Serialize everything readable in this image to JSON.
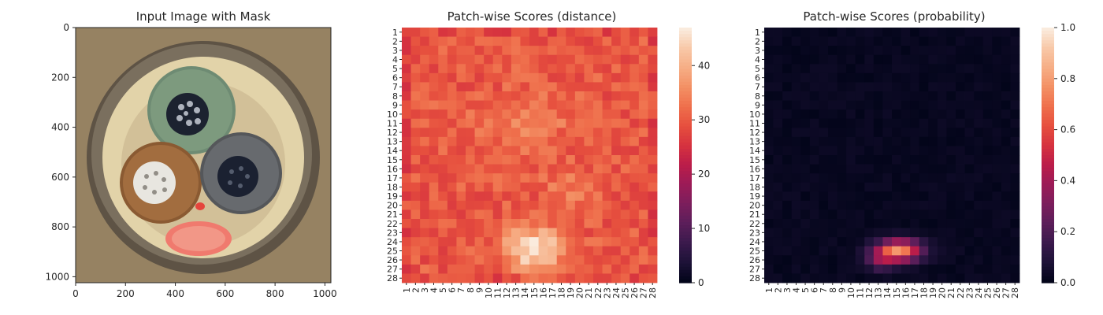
{
  "chart_data": [
    {
      "type": "image",
      "title": "Input Image with Mask",
      "xlim": [
        0,
        1024
      ],
      "ylim": [
        1024,
        0
      ],
      "xticks": [
        0,
        200,
        400,
        600,
        800,
        1000
      ],
      "yticks": [
        0,
        200,
        400,
        600,
        800,
        1000
      ],
      "image_description": "cable cross-section with three insulated conductors (green, brown, grey) inside a cream sheath; red anomaly mask overlaid on the lower sheath area"
    },
    {
      "type": "heatmap",
      "title": "Patch-wise Scores (distance)",
      "rows": [
        "1",
        "2",
        "3",
        "4",
        "5",
        "6",
        "7",
        "8",
        "9",
        "10",
        "11",
        "12",
        "13",
        "14",
        "15",
        "16",
        "17",
        "18",
        "19",
        "20",
        "21",
        "22",
        "23",
        "24",
        "25",
        "26",
        "27",
        "28"
      ],
      "cols": [
        "1",
        "2",
        "3",
        "4",
        "5",
        "6",
        "7",
        "8",
        "9",
        "10",
        "11",
        "12",
        "13",
        "14",
        "15",
        "16",
        "17",
        "18",
        "19",
        "20",
        "21",
        "22",
        "23",
        "24",
        "25",
        "26",
        "27",
        "28"
      ],
      "value_range": [
        0,
        47
      ],
      "colorbar_ticks": [
        0,
        10,
        20,
        30,
        40
      ],
      "colormap": "rocket",
      "description": "mostly 28-34 with a bright region around rows 23-27, cols 12-18 reaching ~47; ring around center rows 9-13 cols 10-20 ~36-38"
    },
    {
      "type": "heatmap",
      "title": "Patch-wise Scores (probability)",
      "rows": [
        "1",
        "2",
        "3",
        "4",
        "5",
        "6",
        "7",
        "8",
        "9",
        "10",
        "11",
        "12",
        "13",
        "14",
        "15",
        "16",
        "17",
        "18",
        "19",
        "20",
        "21",
        "22",
        "23",
        "24",
        "25",
        "26",
        "27",
        "28"
      ],
      "cols": [
        "1",
        "2",
        "3",
        "4",
        "5",
        "6",
        "7",
        "8",
        "9",
        "10",
        "11",
        "12",
        "13",
        "14",
        "15",
        "16",
        "17",
        "18",
        "19",
        "20",
        "21",
        "22",
        "23",
        "24",
        "25",
        "26",
        "27",
        "28"
      ],
      "value_range": [
        0,
        1
      ],
      "colorbar_ticks": [
        "0.0",
        "0.2",
        "0.4",
        "0.6",
        "0.8",
        "1.0"
      ],
      "colormap": "rocket",
      "description": "near zero everywhere except rows 22-27, cols 11-18; peak ~0.75 around row 25 cols 14-17"
    }
  ],
  "colors": {
    "rocket": [
      "#03051a",
      "#1e1238",
      "#3c1a4d",
      "#5c1e5a",
      "#7c1e5c",
      "#9c1b57",
      "#bb1d4a",
      "#d6323f",
      "#e64f3e",
      "#ef6f4c",
      "#f39064",
      "#f6ad85",
      "#f8c8a7",
      "#faebdd"
    ]
  }
}
